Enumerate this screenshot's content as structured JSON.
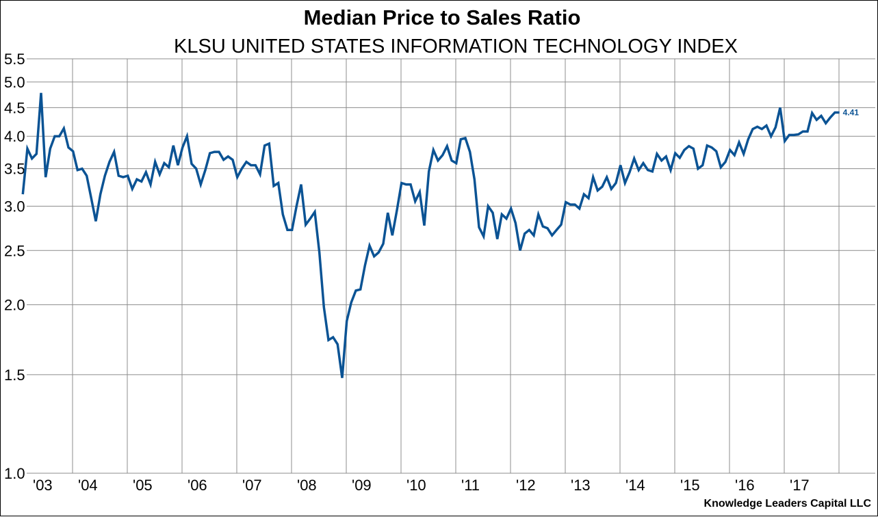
{
  "chart_data": {
    "type": "line",
    "title": "Median Price to Sales Ratio",
    "subtitle": "KLSU UNITED STATES INFORMATION TECHNOLOGY INDEX",
    "xlabel": "",
    "ylabel": "",
    "yscale": "log",
    "ylim": [
      1.0,
      5.5
    ],
    "yticks": [
      1.0,
      1.5,
      2.0,
      2.5,
      3.0,
      3.5,
      4.0,
      4.5,
      5.0,
      5.5
    ],
    "ytick_labels": [
      "1.0",
      "1.5",
      "2.0",
      "2.5",
      "3.0",
      "3.5",
      "4.0",
      "4.5",
      "5.0",
      "5.5"
    ],
    "xtick_labels": [
      "'03",
      "'04",
      "'05",
      "'06",
      "'07",
      "'08",
      "'09",
      "'10",
      "'11",
      "'12",
      "'13",
      "'14",
      "'15",
      "'16",
      "'17"
    ],
    "x_start_year": 2003,
    "x_end_year": 2018.25,
    "grid": true,
    "legend": "none",
    "line_color": "#0b5394",
    "end_label": "4.41",
    "credit": "Knowledge Leaders Capital LLC",
    "series": [
      {
        "name": "KLSU United States Information Technology Index Median P/S",
        "start": "2003-01",
        "frequency": "monthly",
        "values": [
          3.15,
          3.8,
          3.65,
          3.72,
          4.78,
          3.38,
          3.8,
          4.0,
          4.0,
          4.13,
          3.82,
          3.76,
          3.48,
          3.5,
          3.4,
          3.1,
          2.82,
          3.15,
          3.4,
          3.6,
          3.75,
          3.4,
          3.38,
          3.4,
          3.22,
          3.35,
          3.32,
          3.45,
          3.28,
          3.6,
          3.42,
          3.58,
          3.52,
          3.85,
          3.55,
          3.82,
          4.0,
          3.57,
          3.5,
          3.28,
          3.48,
          3.73,
          3.75,
          3.75,
          3.63,
          3.68,
          3.63,
          3.38,
          3.5,
          3.6,
          3.55,
          3.55,
          3.42,
          3.85,
          3.88,
          3.26,
          3.3,
          2.9,
          2.72,
          2.72,
          3.0,
          3.28,
          2.78,
          2.85,
          2.93,
          2.48,
          1.98,
          1.73,
          1.75,
          1.7,
          1.48,
          1.87,
          2.02,
          2.12,
          2.13,
          2.35,
          2.55,
          2.44,
          2.48,
          2.57,
          2.92,
          2.66,
          2.95,
          3.3,
          3.28,
          3.28,
          3.06,
          3.18,
          2.77,
          3.46,
          3.78,
          3.62,
          3.7,
          3.84,
          3.62,
          3.58,
          3.95,
          3.97,
          3.75,
          3.35,
          2.75,
          2.65,
          3.0,
          2.92,
          2.62,
          2.9,
          2.85,
          2.97,
          2.8,
          2.5,
          2.68,
          2.72,
          2.66,
          2.9,
          2.76,
          2.74,
          2.66,
          2.72,
          2.78,
          3.05,
          3.02,
          3.02,
          2.97,
          3.15,
          3.1,
          3.38,
          3.2,
          3.25,
          3.38,
          3.22,
          3.3,
          3.55,
          3.3,
          3.45,
          3.65,
          3.48,
          3.58,
          3.48,
          3.46,
          3.72,
          3.62,
          3.68,
          3.48,
          3.73,
          3.66,
          3.78,
          3.84,
          3.8,
          3.5,
          3.55,
          3.85,
          3.82,
          3.76,
          3.52,
          3.6,
          3.78,
          3.7,
          3.9,
          3.72,
          3.95,
          4.12,
          4.16,
          4.12,
          4.18,
          4.0,
          4.15,
          4.5,
          3.92,
          4.02,
          4.02,
          4.03,
          4.08,
          4.08,
          4.4,
          4.28,
          4.35,
          4.22,
          4.32,
          4.41,
          4.41
        ]
      }
    ]
  }
}
